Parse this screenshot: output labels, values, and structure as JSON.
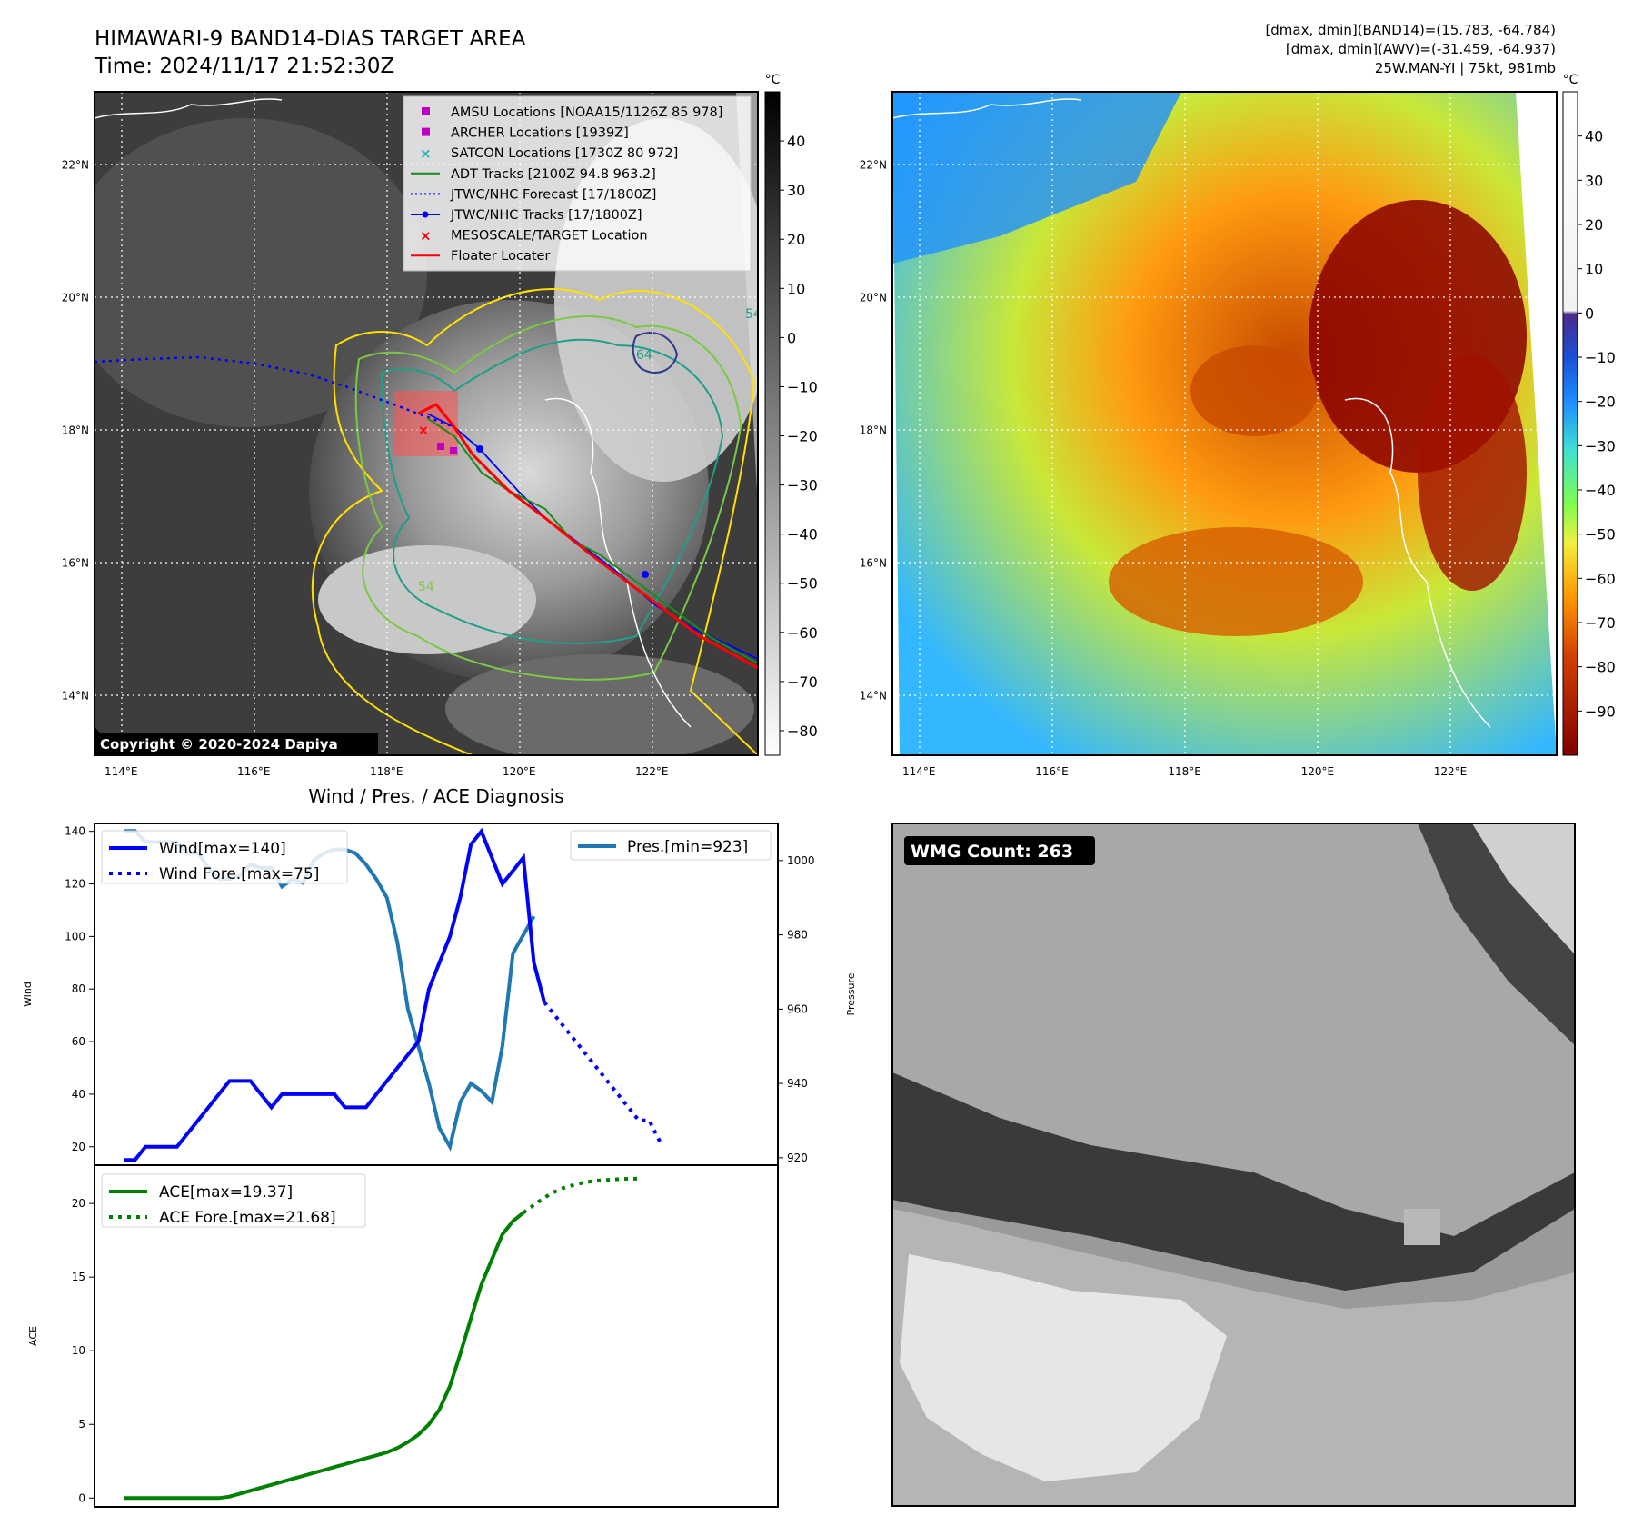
{
  "header": {
    "title_line1": "HIMAWARI-9 BAND14-DIAS TARGET AREA",
    "title_line2": "Time: 2024/11/17 21:52:30Z",
    "info_line1": "[dmax, dmin](BAND14)=(15.783, -64.784)",
    "info_line2": "[dmax, dmin](AWV)=(-31.459, -64.937)",
    "info_line3": "25W.MAN-YI | 75kt, 981mb"
  },
  "map_axes": {
    "lon_labels": [
      "114°E",
      "116°E",
      "118°E",
      "120°E",
      "122°E"
    ],
    "lon_values": [
      114,
      116,
      118,
      120,
      122
    ],
    "lat_labels": [
      "22°N",
      "20°N",
      "18°N",
      "16°N",
      "14°N"
    ],
    "lat_values": [
      22,
      20,
      18,
      16,
      14
    ],
    "lon_range": [
      113.6,
      123.6
    ],
    "lat_range": [
      13.1,
      23.1
    ]
  },
  "ir_map": {
    "copyright": "Copyright © 2020-2024 Dapiya",
    "colorbar_unit": "°C",
    "colorbar_ticks": [
      "40",
      "30",
      "20",
      "10",
      "0",
      "−10",
      "−20",
      "−30",
      "−40",
      "−50",
      "−60",
      "−70",
      "−80"
    ],
    "colorbar_values": [
      40,
      30,
      20,
      10,
      0,
      -10,
      -20,
      -30,
      -40,
      -50,
      -60,
      -70,
      -80
    ],
    "colorbar_range": [
      -85,
      50
    ],
    "contour_labels": [
      "54",
      "54",
      "64"
    ],
    "legend": [
      {
        "label": "AMSU Locations [NOAA15/1126Z 85 978]",
        "marker": "square",
        "color": "#c000c0"
      },
      {
        "label": "ARCHER Locations [1939Z]",
        "marker": "square",
        "color": "#c000c0"
      },
      {
        "label": "SATCON Locations [1730Z 80 972]",
        "marker": "x",
        "color": "#20b0b0"
      },
      {
        "label": "ADT Tracks [2100Z 94.8 963.2]",
        "marker": "line",
        "color": "#1a8a1a"
      },
      {
        "label": "JTWC/NHC Forecast [17/1800Z]",
        "marker": "dotted",
        "color": "#0000ff"
      },
      {
        "label": "JTWC/NHC Tracks [17/1800Z]",
        "marker": "line-dot",
        "color": "#0000ff"
      },
      {
        "label": "MESOSCALE/TARGET Location",
        "marker": "x",
        "color": "#ff0000"
      },
      {
        "label": "Floater Locater",
        "marker": "line",
        "color": "#ff0000"
      }
    ]
  },
  "awv_map": {
    "colorbar_unit": "°C",
    "colorbar_ticks": [
      "40",
      "30",
      "20",
      "10",
      "0",
      "−10",
      "−20",
      "−30",
      "−40",
      "−50",
      "−60",
      "−70",
      "−80",
      "−90"
    ],
    "colorbar_values": [
      40,
      30,
      20,
      10,
      0,
      -10,
      -20,
      -30,
      -40,
      -50,
      -60,
      -70,
      -80,
      -90
    ],
    "colorbar_range": [
      -100,
      50
    ]
  },
  "diag": {
    "title": "Wind / Pres. / ACE Diagnosis",
    "wind_ylabel": "Wind",
    "pres_ylabel": "Pressure",
    "ace_ylabel": "ACE",
    "legend_wind": "Wind[max=140]",
    "legend_wind_fore": "Wind Fore.[max=75]",
    "legend_pres": "Pres.[min=923]",
    "legend_ace": "ACE[max=19.37]",
    "legend_ace_fore": "ACE Fore.[max=21.68]",
    "wind_ticks": [
      "20",
      "40",
      "60",
      "80",
      "100",
      "120",
      "140"
    ],
    "pres_ticks": [
      "920",
      "940",
      "960",
      "980",
      "1000"
    ],
    "ace_ticks": [
      "0",
      "5",
      "10",
      "15",
      "20"
    ]
  },
  "wmg": {
    "label": "WMG Count: 263"
  },
  "colors": {
    "wind": "#0000ff",
    "pressure": "#1f77b4",
    "ace": "#008000",
    "adt": "#1a8a1a",
    "floater": "#ff0000",
    "contour_yellow": "#ffe000",
    "contour_green": "#7ac943",
    "contour_teal": "#1f9e89",
    "contour_navy": "#2b3a8c"
  },
  "chart_data": [
    {
      "type": "line",
      "title": "Wind / Pres. / ACE Diagnosis",
      "xlabel": "",
      "ylabel": "Wind",
      "ylim": [
        13,
        143
      ],
      "series": [
        {
          "name": "Wind[max=140]",
          "values": [
            15,
            15,
            20,
            20,
            20,
            20,
            25,
            30,
            35,
            40,
            45,
            45,
            45,
            40,
            35,
            40,
            40,
            40,
            40,
            40,
            40,
            35,
            35,
            35,
            40,
            45,
            50,
            55,
            60,
            80,
            90,
            100,
            115,
            135,
            140,
            130,
            120,
            125,
            130,
            90,
            75
          ]
        },
        {
          "name": "Wind Fore.[max=75]",
          "values": [
            75,
            70,
            65,
            60,
            55,
            50,
            45,
            40,
            35,
            30,
            30,
            22
          ]
        }
      ]
    },
    {
      "type": "line",
      "ylabel": "Pressure",
      "ylim": [
        918,
        1010
      ],
      "series": [
        {
          "name": "Pres.[min=923]",
          "values": [
            1008,
            1008,
            1005,
            1005,
            1005,
            1005,
            1002,
            1002,
            998,
            995,
            995,
            996,
            999,
            998,
            998,
            993,
            995,
            994,
            1000,
            1002,
            1003,
            1003,
            1002,
            999,
            995,
            990,
            978,
            960,
            950,
            940,
            928,
            923,
            935,
            940,
            938,
            935,
            950,
            975,
            980,
            985
          ]
        }
      ]
    },
    {
      "type": "line",
      "ylabel": "ACE",
      "ylim": [
        -0.6,
        22.6
      ],
      "series": [
        {
          "name": "ACE[max=19.37]",
          "values": [
            0,
            0,
            0,
            0,
            0,
            0,
            0,
            0,
            0,
            0,
            0.1,
            0.3,
            0.5,
            0.7,
            0.9,
            1.1,
            1.3,
            1.5,
            1.7,
            1.9,
            2.1,
            2.3,
            2.5,
            2.7,
            2.9,
            3.1,
            3.4,
            3.8,
            4.3,
            5,
            6,
            7.6,
            9.8,
            12.2,
            14.5,
            16.2,
            17.9,
            18.8,
            19.37
          ]
        },
        {
          "name": "ACE Fore.[max=21.68]",
          "values": [
            19.37,
            19.9,
            20.4,
            20.8,
            21.1,
            21.3,
            21.45,
            21.55,
            21.6,
            21.65,
            21.68,
            21.68
          ]
        }
      ]
    }
  ]
}
